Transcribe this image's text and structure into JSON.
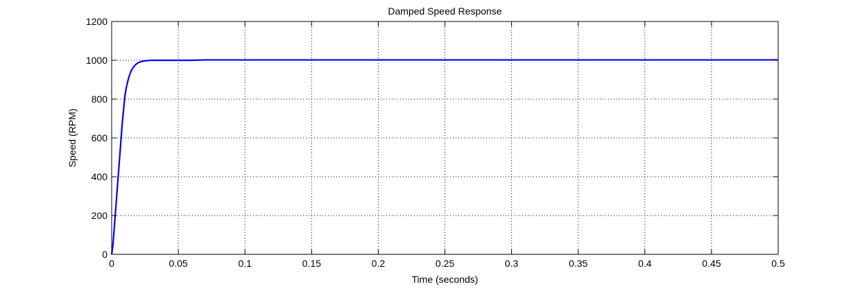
{
  "chart_data": {
    "type": "line",
    "title": "Damped Speed Response",
    "xlabel": "Time (seconds)",
    "ylabel": "Speed (RPM)",
    "xlim": [
      0,
      0.5
    ],
    "ylim": [
      0,
      1200
    ],
    "x_ticks": [
      0,
      0.05,
      0.1,
      0.15,
      0.2,
      0.25,
      0.3,
      0.35,
      0.4,
      0.45,
      0.5
    ],
    "x_tick_labels": [
      "0",
      "0.05",
      "0.1",
      "0.15",
      "0.2",
      "0.25",
      "0.3",
      "0.35",
      "0.4",
      "0.45",
      "0.5"
    ],
    "y_ticks": [
      0,
      200,
      400,
      600,
      800,
      1000,
      1200
    ],
    "y_tick_labels": [
      "0",
      "200",
      "400",
      "600",
      "800",
      "1000",
      "1200"
    ],
    "grid": true,
    "legend": "none",
    "line_color": "#0000ff",
    "series": [
      {
        "color": "#0000ff",
        "x": [
          0,
          0.001,
          0.002,
          0.004,
          0.006,
          0.008,
          0.01,
          0.011,
          0.012,
          0.013,
          0.014,
          0.015,
          0.016,
          0.018,
          0.02,
          0.022,
          0.024,
          0.026,
          0.028,
          0.03,
          0.033,
          0.036,
          0.04,
          0.045,
          0.05,
          0.06,
          0.07,
          0.08,
          0.1,
          0.15,
          0.2,
          0.25,
          0.3,
          0.35,
          0.4,
          0.45,
          0.5
        ],
        "y": [
          0,
          50,
          140,
          320,
          500,
          680,
          820,
          860,
          890,
          915,
          935,
          950,
          962,
          978,
          988,
          993,
          996,
          998,
          999,
          1000,
          1000,
          1000,
          1000,
          1000,
          1000,
          1000,
          1002,
          1002,
          1002,
          1002,
          1002,
          1002,
          1002,
          1002,
          1002,
          1002,
          1002
        ]
      }
    ]
  }
}
